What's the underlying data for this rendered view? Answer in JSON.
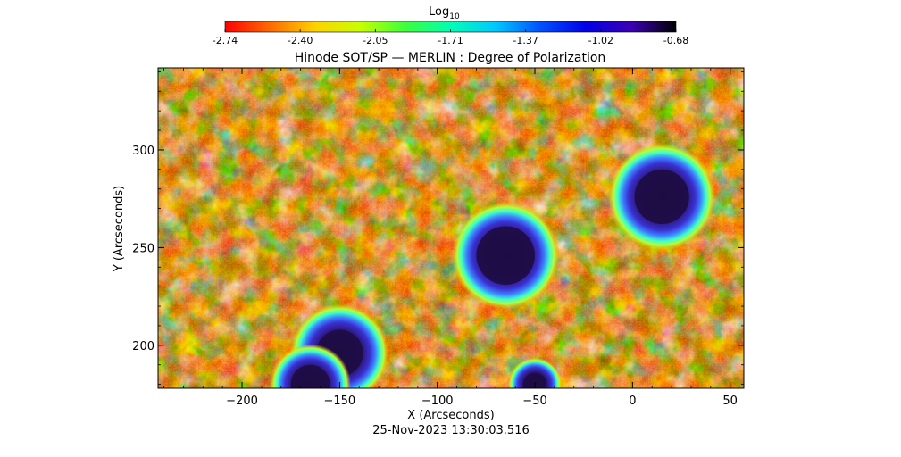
{
  "colorbar": {
    "label": "Log",
    "label_sub": "10",
    "ticks": [
      "-2.74",
      "-2.40",
      "-2.05",
      "-1.71",
      "-1.37",
      "-1.02",
      "-0.68"
    ],
    "range": [
      -2.74,
      -0.68
    ],
    "colormap": [
      "#ff0000",
      "#ff6a00",
      "#ffd200",
      "#c8ff00",
      "#3cff3c",
      "#00ffb4",
      "#00c8ff",
      "#0050ff",
      "#0000e6",
      "#3c00b4",
      "#000000"
    ]
  },
  "title": "Hinode SOT/SP — MERLIN : Degree of Polarization",
  "axes": {
    "xlabel": "X (Arcseconds)",
    "ylabel": "Y (Arcseconds)",
    "xlim": [
      -243,
      57
    ],
    "ylim": [
      178,
      342
    ],
    "xticks": [
      -200,
      -150,
      -100,
      -50,
      0,
      50
    ],
    "yticks": [
      200,
      250,
      300
    ],
    "xtick_labels": [
      "−200",
      "−150",
      "−100",
      "−50",
      "0",
      "50"
    ],
    "ytick_labels": [
      "200",
      "250",
      "300"
    ]
  },
  "image": {
    "background_color": "#ff3b00",
    "sunspots": [
      {
        "x": -65,
        "y": 246,
        "umbra_r": 15,
        "penumbra_r": 24
      },
      {
        "x": 15,
        "y": 276,
        "umbra_r": 14,
        "penumbra_r": 24
      },
      {
        "x": -150,
        "y": 196,
        "umbra_r": 12,
        "penumbra_r": 22
      },
      {
        "x": -165,
        "y": 180,
        "umbra_r": 10,
        "penumbra_r": 18
      },
      {
        "x": -50,
        "y": 180,
        "umbra_r": 6,
        "penumbra_r": 12
      }
    ]
  },
  "timestamp": "25-Nov-2023 13:30:03.516"
}
